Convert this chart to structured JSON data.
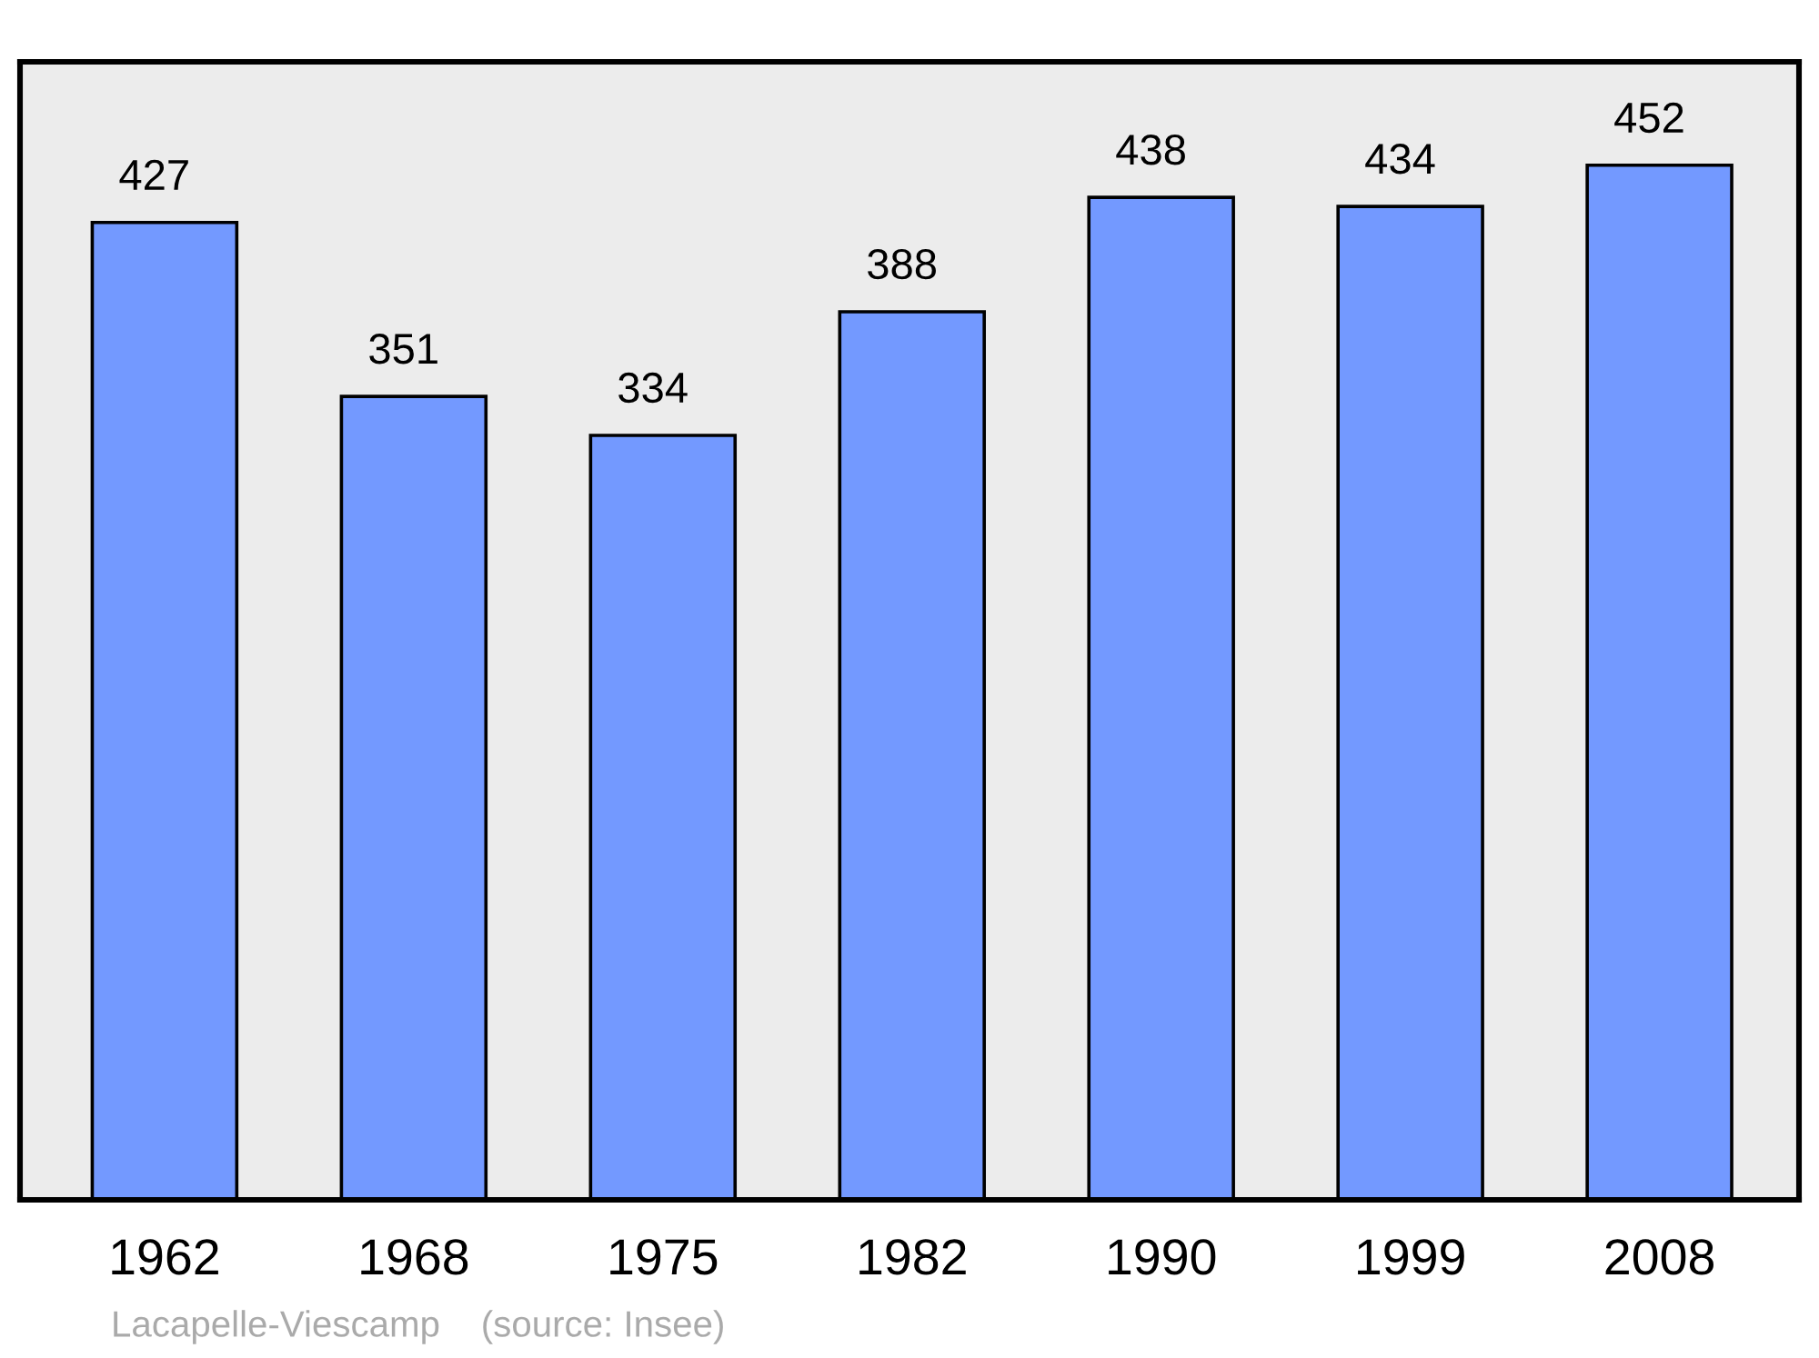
{
  "chart_data": {
    "type": "bar",
    "categories": [
      "1962",
      "1968",
      "1975",
      "1982",
      "1990",
      "1999",
      "2008"
    ],
    "values": [
      427,
      351,
      334,
      388,
      438,
      434,
      452
    ],
    "color": "#7399ff",
    "data_labels": true,
    "annotations": [
      "Lacapelle-Viescamp    (source: Insee)"
    ]
  }
}
